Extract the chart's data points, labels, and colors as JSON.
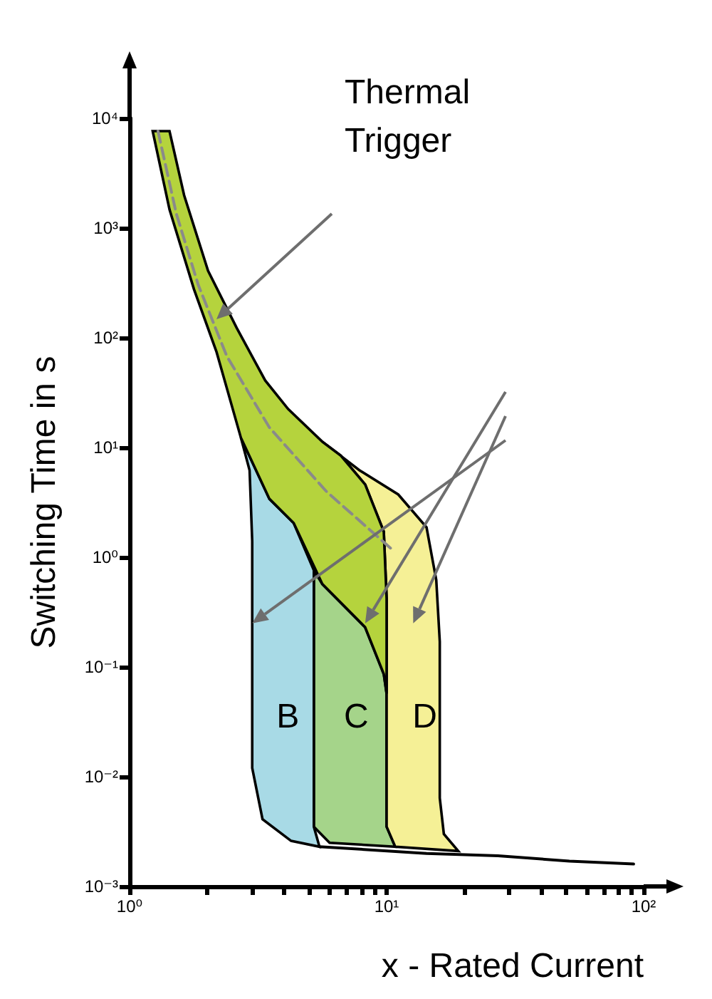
{
  "chart_data": {
    "type": "area",
    "xlabel": "x - Rated Current",
    "ylabel": "Switching Time in s",
    "log": "xy",
    "grid": false,
    "legend": false,
    "marker": "none",
    "xlim": [
      1,
      100
    ],
    "ylim": [
      0.001,
      10000
    ],
    "xticks": [
      {
        "value": 1,
        "label": "10⁰"
      },
      {
        "value": 2,
        "label": null
      },
      {
        "value": 3,
        "label": null
      },
      {
        "value": 4,
        "label": null
      },
      {
        "value": 5,
        "label": null
      },
      {
        "value": 6,
        "label": null
      },
      {
        "value": 7,
        "label": null
      },
      {
        "value": 8,
        "label": null
      },
      {
        "value": 9,
        "label": null
      },
      {
        "value": 10,
        "label": "10¹"
      },
      {
        "value": 20,
        "label": null
      },
      {
        "value": 30,
        "label": null
      },
      {
        "value": 40,
        "label": null
      },
      {
        "value": 50,
        "label": null
      },
      {
        "value": 60,
        "label": null
      },
      {
        "value": 70,
        "label": null
      },
      {
        "value": 80,
        "label": null
      },
      {
        "value": 90,
        "label": null
      },
      {
        "value": 100,
        "label": "10²"
      }
    ],
    "yticks": [
      {
        "value": 0.001,
        "label": "10⁻³"
      },
      {
        "value": 0.01,
        "label": "10⁻²"
      },
      {
        "value": 0.1,
        "label": "10⁻¹"
      },
      {
        "value": 1,
        "label": "10⁰"
      },
      {
        "value": 10,
        "label": "10¹"
      },
      {
        "value": 100,
        "label": "10²"
      },
      {
        "value": 1000,
        "label": "10³"
      },
      {
        "value": 10000,
        "label": "10⁴"
      }
    ],
    "series": [
      {
        "name": "C",
        "color": "#a5d48a",
        "x": [
          5.21,
          5.62,
          8.25,
          9.75,
          10,
          10,
          10.8,
          6.0,
          5.21
        ],
        "values": [
          0.76,
          0.57,
          0.23,
          0.086,
          0.057,
          0.0035,
          0.0023,
          0.0025,
          0.0035
        ]
      },
      {
        "name": "D",
        "color": "#f5f096",
        "x": [
          5.62,
          7.84,
          11.1,
          14.3,
          15.6,
          16.1,
          16.1,
          16.7,
          19,
          10.8,
          10,
          10,
          10,
          9.75,
          8.25,
          6.64
        ],
        "values": [
          11.3,
          6.2,
          3.73,
          1.87,
          0.62,
          0.17,
          0.0064,
          0.003,
          0.0021,
          0.0023,
          0.0035,
          0.057,
          0.42,
          1.71,
          4.6,
          8.4
        ]
      },
      {
        "name": "B",
        "color": "#a8dae6",
        "x": [
          2.71,
          2.93,
          3,
          3,
          3,
          3.29,
          4.25,
          5.48,
          5.21,
          5.21,
          4.35,
          3.5
        ],
        "values": [
          12.3,
          6.2,
          1.4,
          0.17,
          0.012,
          0.0041,
          0.0026,
          0.0023,
          0.0035,
          0.76,
          2.05,
          3.4
        ]
      },
      {
        "color": "#b5d33d",
        "x": [
          1.23,
          1.43,
          1.78,
          2.18,
          2.71,
          3.5,
          4.35,
          5.62,
          8.25,
          9.75,
          10,
          10,
          9.75,
          8.25,
          6.64,
          5.62,
          4.14,
          3.37,
          2.61,
          2.02,
          1.63,
          1.43
        ],
        "values": [
          7640,
          1475,
          277,
          74,
          12.3,
          3.4,
          2.05,
          0.57,
          0.23,
          0.086,
          0.057,
          0.42,
          1.71,
          4.6,
          8.4,
          11.3,
          22.4,
          40.8,
          123,
          408,
          1990,
          7640
        ]
      },
      {
        "type": "line",
        "color": "#000000",
        "x": [
          5.48,
          14.3,
          27.1,
          51.4,
          91.4
        ],
        "values": [
          0.0023,
          0.002,
          0.0019,
          0.0017,
          0.0016
        ]
      },
      {
        "type": "line",
        "line_style": "dashed",
        "color": "#8a8a8a",
        "x": [
          1.29,
          1.52,
          1.85,
          2.39,
          3.5,
          5.84,
          10.4
        ],
        "values": [
          7640,
          1349,
          303,
          67.8,
          15.2,
          3.96,
          1.2
        ]
      }
    ],
    "annotations": [
      "Thermal Trigger"
    ]
  }
}
